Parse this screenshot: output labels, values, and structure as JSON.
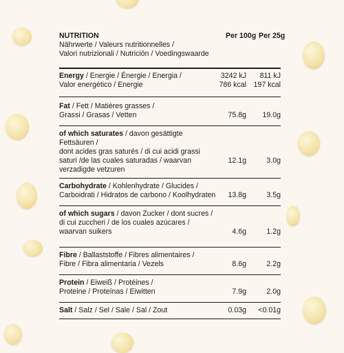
{
  "header": {
    "title": "NUTRITION",
    "languages_line1": "Nährwerte / Valeurs nutritionnelles /",
    "languages_line2": "Valori nutrizionali / Nutrición / Voedingswaarde",
    "col_100g": "Per 100g",
    "col_25g": "Per 25g"
  },
  "rows": [
    {
      "label_bold": "Energy",
      "label_rest": " / Energie / Énergie / Energia /",
      "line2": "Valor energético / Energie",
      "v100": [
        "3242 kJ",
        "786 kcal"
      ],
      "v25": [
        "811 kJ",
        "197 kcal"
      ]
    },
    {
      "label_bold": "Fat",
      "label_rest": " / Fett / Matières grasses /",
      "line2": "Grassi / Grasas / Vetten",
      "v100": "75.8g",
      "v25": "19.0g"
    },
    {
      "label_bold": "of which saturates",
      "label_rest": " / davon gesättigte Fettsäuren /",
      "line2": "dont acides gras saturés / di cui acidi grassi",
      "line3": "saturi /de las cuales saturadas / waarvan",
      "line4": "verzadigde vetzuren",
      "v100": "12.1g",
      "v25": "3.0g"
    },
    {
      "label_bold": "Carbohydrate",
      "label_rest": " / Kohlenhydrate / Glucides /",
      "line2": "Carboidrati / Hidratos de carbono / Koolhydraten",
      "v100": "13.8g",
      "v25": "3.5g"
    },
    {
      "label_bold": "of which sugars",
      "label_rest": " / davon Zucker / dont sucres /",
      "line2": "di cui zuccheri / de los cuales azúcares /",
      "line3": "waarvan suikers",
      "v100": "4.6g",
      "v25": "1.2g"
    },
    {
      "label_bold": "Fibre",
      "label_rest": " / Ballaststoffe / Fibres alimentaires /",
      "line2": "Fibre / Fibra alimentaria / Vezels",
      "v100": "8.6g",
      "v25": "2.2g"
    },
    {
      "label_bold": "Protein",
      "label_rest": " / Eiweiß / Protéines /",
      "line2": "Proteine / Proteínas / Eiwitten",
      "v100": "7.9g",
      "v25": "2.0g"
    },
    {
      "label_bold": "Salt",
      "label_rest": " / Salz / Sel / Sale / Sal / Zout",
      "v100": "0.03g",
      "v25": "<0.01g"
    }
  ]
}
